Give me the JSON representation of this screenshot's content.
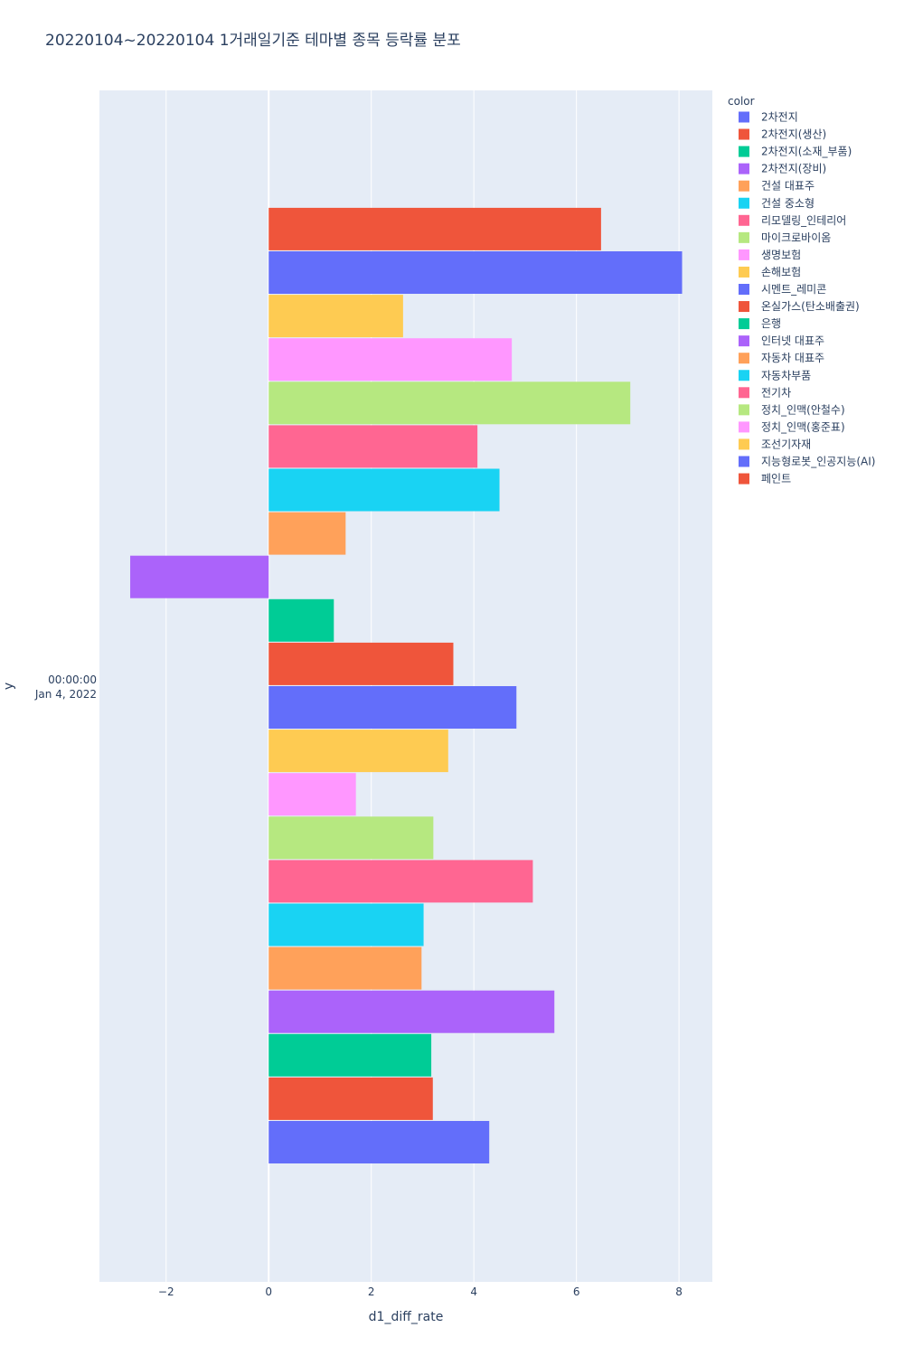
{
  "chart_data": {
    "type": "bar",
    "orientation": "horizontal",
    "barmode": "group",
    "title": "20220104~20220104 1거래일기준 테마별 종목 등락률 분포",
    "xlabel": "d1_diff_rate",
    "ylabel": "y",
    "xlim": [
      -3.3,
      8.65
    ],
    "xticks": [
      -2,
      0,
      2,
      4,
      6,
      8
    ],
    "xtick_labels": [
      "−2",
      "0",
      "2",
      "4",
      "6",
      "8"
    ],
    "ytick_label_line1": "00:00:00",
    "ytick_label_line2": "Jan 4, 2022",
    "grid": true,
    "legend_title": "color",
    "legend_position": "right",
    "series": [
      {
        "name": "2차전지",
        "value": 4.3,
        "color": "#636efa"
      },
      {
        "name": "2차전지(생산)",
        "value": 3.2,
        "color": "#ef553b"
      },
      {
        "name": "2차전지(소재_부품)",
        "value": 3.17,
        "color": "#00cc96"
      },
      {
        "name": "2차전지(장비)",
        "value": 5.57,
        "color": "#ab63fa"
      },
      {
        "name": "건설 대표주",
        "value": 2.98,
        "color": "#ffa15a"
      },
      {
        "name": "건설 중소형",
        "value": 3.02,
        "color": "#19d3f3"
      },
      {
        "name": "리모델링_인테리어",
        "value": 5.15,
        "color": "#ff6692"
      },
      {
        "name": "마이크로바이옴",
        "value": 3.21,
        "color": "#b6e880"
      },
      {
        "name": "생명보험",
        "value": 1.7,
        "color": "#ff97ff"
      },
      {
        "name": "손해보험",
        "value": 3.5,
        "color": "#fecb52"
      },
      {
        "name": "시멘트_레미콘",
        "value": 4.83,
        "color": "#636efa"
      },
      {
        "name": "온실가스(탄소배출권)",
        "value": 3.6,
        "color": "#ef553b"
      },
      {
        "name": "은행",
        "value": 1.27,
        "color": "#00cc96"
      },
      {
        "name": "인터넷 대표주",
        "value": -2.7,
        "color": "#ab63fa"
      },
      {
        "name": "자동차 대표주",
        "value": 1.5,
        "color": "#ffa15a"
      },
      {
        "name": "자동차부품",
        "value": 4.5,
        "color": "#19d3f3"
      },
      {
        "name": "전기차",
        "value": 4.07,
        "color": "#ff6692"
      },
      {
        "name": "정치_인맥(안철수)",
        "value": 7.05,
        "color": "#b6e880"
      },
      {
        "name": "정치_인맥(홍준표)",
        "value": 4.74,
        "color": "#ff97ff"
      },
      {
        "name": "조선기자재",
        "value": 2.62,
        "color": "#fecb52"
      },
      {
        "name": "지능형로봇_인공지능(AI)",
        "value": 8.06,
        "color": "#636efa"
      },
      {
        "name": "페인트",
        "value": 6.48,
        "color": "#ef553b"
      }
    ]
  }
}
